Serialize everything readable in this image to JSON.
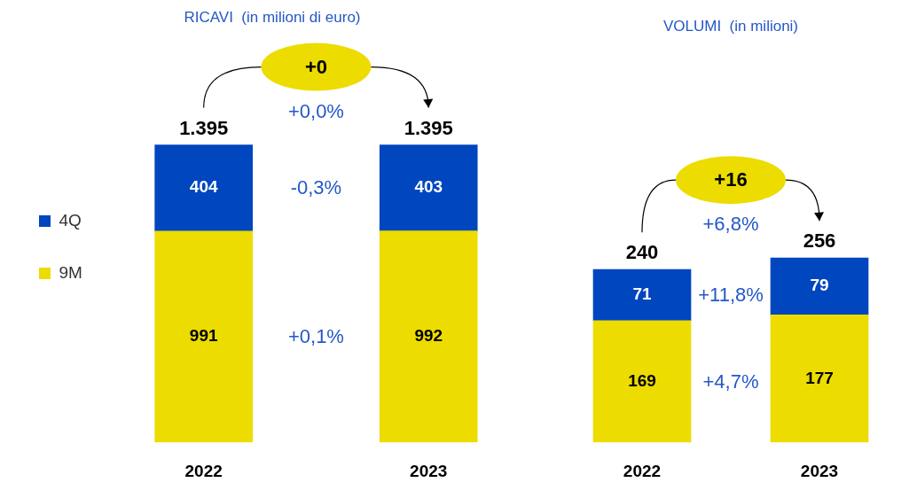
{
  "chart_data": [
    {
      "type": "bar",
      "title": "RICAVI  (in milioni di euro)",
      "categories": [
        "2022",
        "2023"
      ],
      "stacked": true,
      "data_labels": true,
      "legend": "left",
      "series": [
        {
          "name": "9M",
          "color": "#ecdc00",
          "values": [
            991,
            992
          ]
        },
        {
          "name": "4Q",
          "color": "#0046be",
          "values": [
            404,
            403
          ]
        }
      ],
      "totals": [
        "1.395",
        "1.395"
      ],
      "annotations": [
        "+0",
        "+0,0%",
        "-0,3%",
        "+0,1%"
      ]
    },
    {
      "type": "bar",
      "title": "VOLUMI  (in milioni)",
      "categories": [
        "2022",
        "2023"
      ],
      "stacked": true,
      "data_labels": true,
      "series": [
        {
          "color": "#ecdc00",
          "values": [
            169,
            177
          ]
        },
        {
          "color": "#0046be",
          "values": [
            71,
            79
          ]
        }
      ],
      "totals": [
        "240",
        "256"
      ],
      "annotations": [
        "+16",
        "+6,8%",
        "+11,8%",
        "+4,7%"
      ]
    }
  ]
}
